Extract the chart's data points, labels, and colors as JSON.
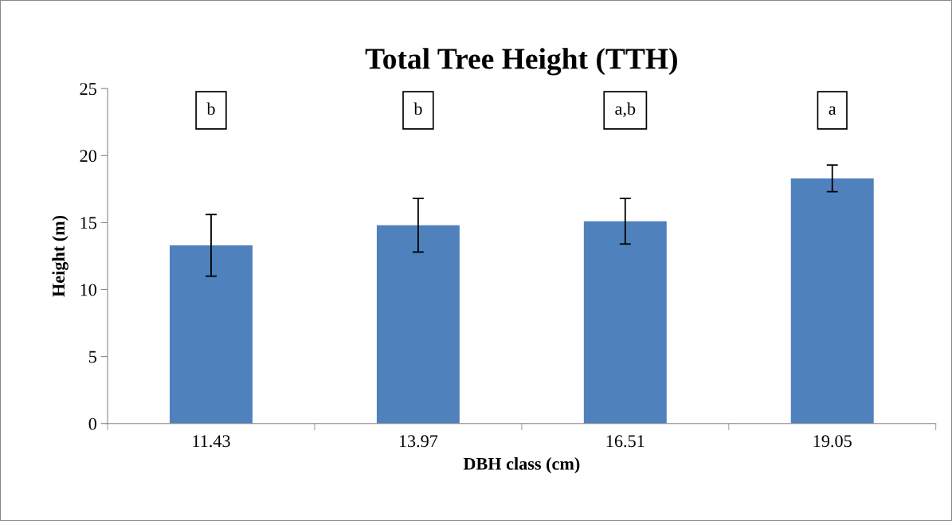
{
  "chart_data": {
    "type": "bar",
    "title": "Total Tree Height (TTH)",
    "xlabel": "DBH class (cm)",
    "ylabel": "Height (m)",
    "categories": [
      "11.43",
      "13.97",
      "16.51",
      "19.05"
    ],
    "values": [
      13.3,
      14.8,
      15.1,
      18.3
    ],
    "errors": [
      2.3,
      2.0,
      1.7,
      1.0
    ],
    "color": "#4f81bd",
    "ylim": [
      0,
      25
    ],
    "yticks": [
      0,
      5,
      10,
      15,
      20,
      25
    ],
    "grid": false,
    "legend": false,
    "annotations": [
      "b",
      "b",
      "a,b",
      "a"
    ]
  }
}
